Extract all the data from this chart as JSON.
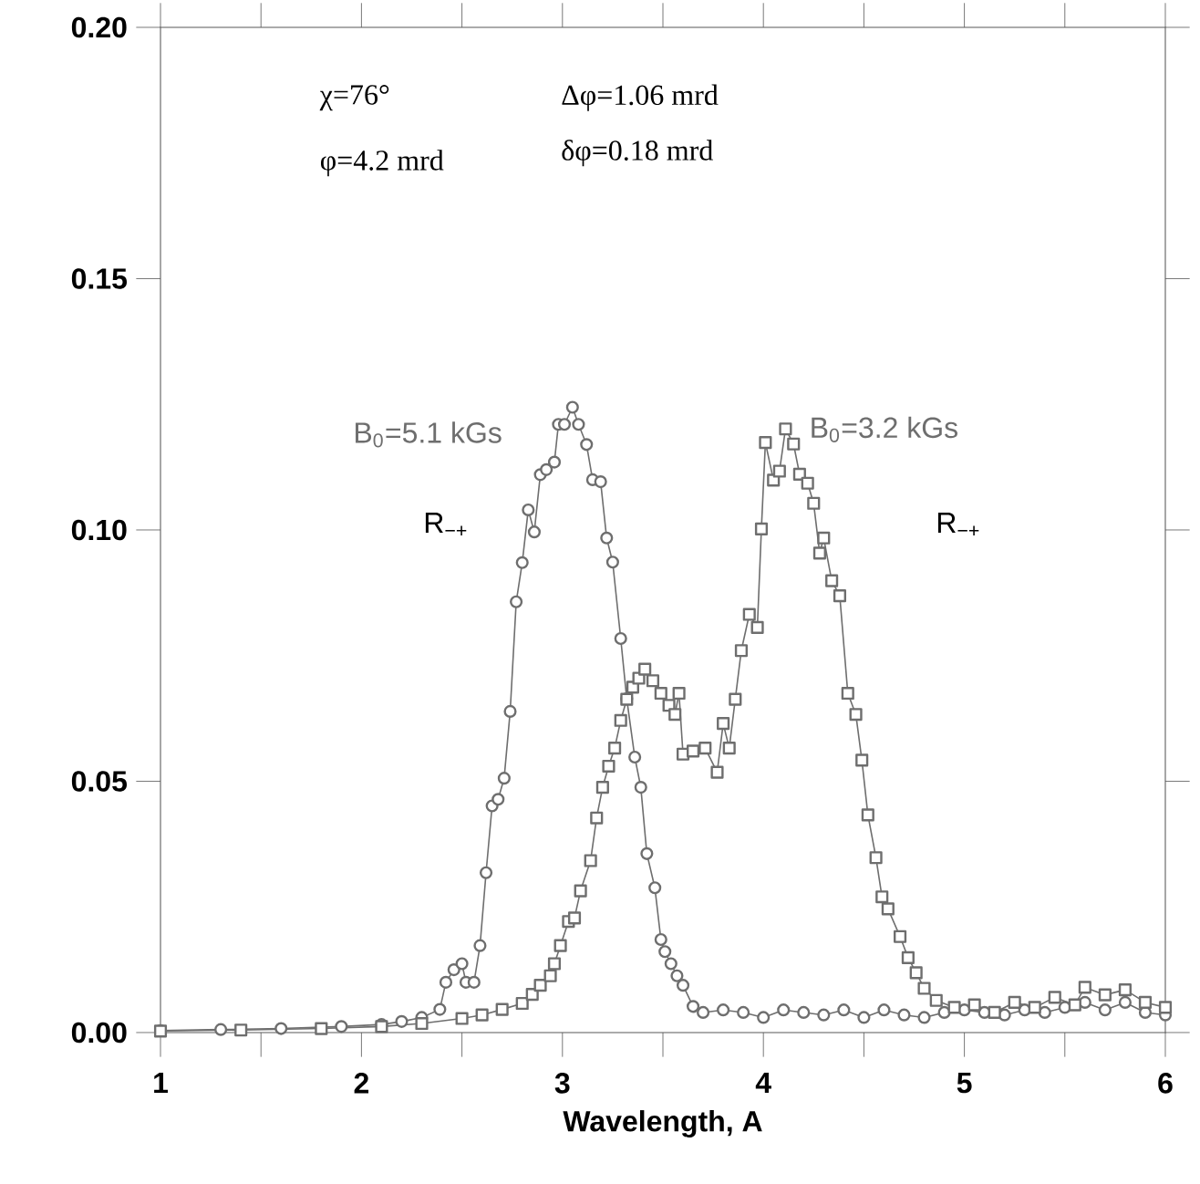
{
  "chart_data": {
    "type": "line",
    "xlabel": "Wavelength, A",
    "xlim": [
      1,
      6
    ],
    "ylim": [
      0,
      0.2
    ],
    "xticks": [
      1,
      {
        "value": 1.5,
        "label": null
      },
      2,
      {
        "value": 2.5,
        "label": null
      },
      3,
      {
        "value": 3.5,
        "label": null
      },
      4,
      {
        "value": 4.5,
        "label": null
      },
      5,
      {
        "value": 5.5,
        "label": null
      },
      6
    ],
    "yticks": [
      {
        "value": 0,
        "label": "0.00"
      },
      {
        "value": 0.05,
        "label": "0.05"
      },
      {
        "value": 0.1,
        "label": "0.10"
      },
      {
        "value": 0.15,
        "label": "0.15"
      },
      {
        "value": 0.2,
        "label": "0.20"
      }
    ],
    "grid": false,
    "line_style": "solid",
    "series": [
      {
        "name": "B$_{0}$=5.1 kGs",
        "color": "#6e6e6e",
        "marker": "circle",
        "x": [
          1.0,
          1.3,
          1.6,
          1.9,
          2.1,
          2.2,
          2.3,
          2.39,
          2.42,
          2.46,
          2.5,
          2.52,
          2.56,
          2.59,
          2.62,
          2.65,
          2.68,
          2.71,
          2.74,
          2.77,
          2.8,
          2.83,
          2.86,
          2.89,
          2.92,
          2.96,
          2.98,
          3.01,
          3.05,
          3.08,
          3.12,
          3.15,
          3.19,
          3.22,
          3.25,
          3.29,
          3.32,
          3.36,
          3.39,
          3.42,
          3.46,
          3.49,
          3.51,
          3.54,
          3.57,
          3.6,
          3.65,
          3.7,
          3.8,
          3.9,
          4.0,
          4.1,
          4.2,
          4.3,
          4.4,
          4.5,
          4.6,
          4.7,
          4.8,
          4.9,
          5.0,
          5.1,
          5.2,
          5.3,
          5.4,
          5.5,
          5.6,
          5.7,
          5.8,
          5.9,
          6.0
        ],
        "values": [
          0.0004,
          0.0006,
          0.0008,
          0.0012,
          0.0016,
          0.0022,
          0.003,
          0.0046,
          0.01,
          0.0125,
          0.0137,
          0.01,
          0.01,
          0.0173,
          0.0318,
          0.0451,
          0.0464,
          0.0506,
          0.0639,
          0.0857,
          0.0935,
          0.104,
          0.0996,
          0.111,
          0.112,
          0.1135,
          0.121,
          0.121,
          0.1244,
          0.121,
          0.117,
          0.11,
          0.1096,
          0.0984,
          0.0936,
          0.0784,
          0.0664,
          0.0548,
          0.0488,
          0.0356,
          0.0288,
          0.0185,
          0.0161,
          0.0137,
          0.0113,
          0.0094,
          0.0052,
          0.004,
          0.0045,
          0.004,
          0.003,
          0.0045,
          0.004,
          0.0035,
          0.0045,
          0.003,
          0.0045,
          0.0035,
          0.003,
          0.004,
          0.0045,
          0.004,
          0.0035,
          0.0045,
          0.004,
          0.005,
          0.006,
          0.0045,
          0.006,
          0.004,
          0.0035
        ]
      },
      {
        "name": "B$_{0}$=3.2 kGs",
        "color": "#6e6e6e",
        "marker": "square",
        "x": [
          1.0,
          1.4,
          1.8,
          2.1,
          2.3,
          2.5,
          2.6,
          2.7,
          2.8,
          2.85,
          2.89,
          2.94,
          2.96,
          2.99,
          3.03,
          3.06,
          3.09,
          3.14,
          3.17,
          3.2,
          3.23,
          3.26,
          3.29,
          3.32,
          3.35,
          3.38,
          3.41,
          3.45,
          3.49,
          3.53,
          3.56,
          3.58,
          3.6,
          3.65,
          3.71,
          3.77,
          3.8,
          3.83,
          3.86,
          3.89,
          3.93,
          3.97,
          3.99,
          4.01,
          4.05,
          4.08,
          4.11,
          4.15,
          4.18,
          4.22,
          4.25,
          4.28,
          4.3,
          4.34,
          4.38,
          4.42,
          4.46,
          4.49,
          4.52,
          4.56,
          4.59,
          4.62,
          4.68,
          4.72,
          4.76,
          4.8,
          4.86,
          4.95,
          5.05,
          5.15,
          5.25,
          5.35,
          5.45,
          5.55,
          5.6,
          5.7,
          5.8,
          5.9,
          6.0
        ],
        "values": [
          0.0003,
          0.0005,
          0.0008,
          0.0012,
          0.0018,
          0.0028,
          0.0035,
          0.0046,
          0.0058,
          0.0076,
          0.0094,
          0.0113,
          0.0137,
          0.0173,
          0.0221,
          0.0228,
          0.0282,
          0.0342,
          0.0427,
          0.0488,
          0.053,
          0.0566,
          0.0621,
          0.0663,
          0.0687,
          0.0705,
          0.0723,
          0.07,
          0.0675,
          0.0651,
          0.0633,
          0.0675,
          0.0554,
          0.056,
          0.0566,
          0.0518,
          0.0615,
          0.0566,
          0.0663,
          0.076,
          0.0832,
          0.0806,
          0.1002,
          0.1174,
          0.1099,
          0.1117,
          0.1201,
          0.1171,
          0.1111,
          0.1093,
          0.1053,
          0.0954,
          0.0984,
          0.0899,
          0.0869,
          0.0675,
          0.0633,
          0.0542,
          0.0433,
          0.0348,
          0.027,
          0.0246,
          0.0191,
          0.0149,
          0.0119,
          0.0088,
          0.0064,
          0.005,
          0.0055,
          0.004,
          0.006,
          0.005,
          0.007,
          0.0055,
          0.009,
          0.0075,
          0.0085,
          0.006,
          0.005
        ]
      }
    ],
    "annotations": [
      "χ=76°",
      "φ=4.2 mrd",
      "Δφ=1.06 mrd",
      "δφ=0.18 mrd",
      "R$_{−+}$",
      "R$_{−+}$"
    ]
  }
}
